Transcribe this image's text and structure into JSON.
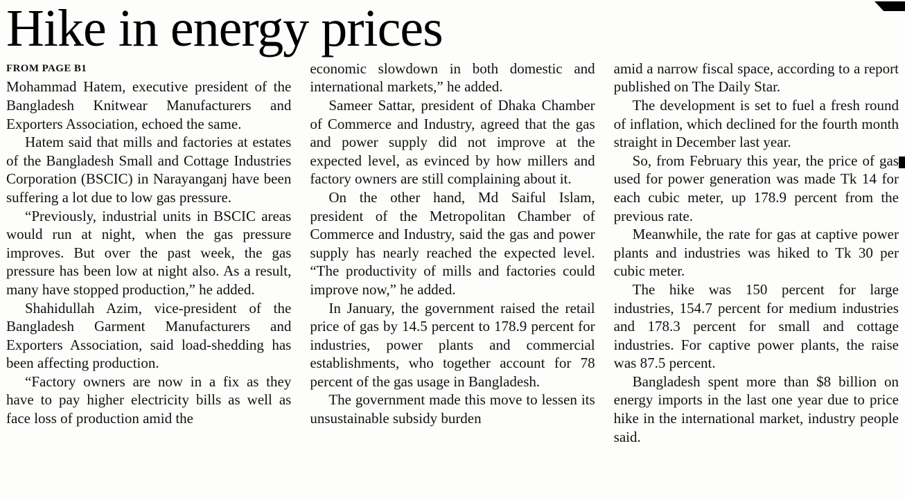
{
  "article": {
    "headline": "Hike in energy prices",
    "kicker": "FROM PAGE B1",
    "text_color": "#111111",
    "background_color": "#fdfdfb",
    "columns": [
      {
        "paragraphs": [
          "Mohammad Hatem, executive president of the Bangladesh Knitwear Manufacturers and Exporters Association, echoed the same.",
          "Hatem said that mills and factories at estates of the Bangladesh Small and Cottage Industries Corporation (BSCIC) in Narayanganj have been suffering a lot due to low gas pressure.",
          "“Previously, industrial units in BSCIC areas would run at night, when the gas pressure improves. But over the past week, the gas pressure has been low at night also. As a result, many have stopped production,” he added.",
          "Shahidullah Azim, vice-president of the Bangladesh Garment Manufacturers and Exporters Association, said load-shedding has been affecting production.",
          "“Factory owners are now in a fix as they have to pay higher electricity bills as well as face loss of production amid the"
        ]
      },
      {
        "paragraphs": [
          "economic slowdown in both domestic and international markets,” he added.",
          "Sameer Sattar, president of Dhaka Chamber of Commerce and Industry, agreed that the gas and power supply did not improve at the expected level, as evinced by how millers and factory owners are still complaining about it.",
          "On the other hand, Md Saiful Islam, president of the Metropolitan Chamber of Commerce and Industry, said the gas and power supply has nearly reached the expected level. “The productivity of mills and factories could improve now,” he added.",
          "In January, the government raised the retail price of gas by 14.5 percent to 178.9 percent for industries, power plants and commercial establishments, who together account for 78 percent of the gas usage in Bangladesh.",
          "The government made this move to lessen its unsustainable subsidy burden"
        ]
      },
      {
        "paragraphs": [
          "amid a narrow fiscal space, according to a report published on The Daily Star.",
          "The development is set to fuel a fresh round of inflation, which declined for the fourth month straight in December last year.",
          "So, from February this year, the price of gas used for power generation was made Tk 14 for each cubic meter, up 178.9 percent from the previous rate.",
          "Meanwhile, the rate for gas at captive power plants and industries was hiked to Tk 30 per cubic meter.",
          "The hike was 150 percent for large industries, 154.7 percent for medium industries and 178.3 percent for small and cottage industries. For captive power plants, the raise was 87.5 percent.",
          "Bangladesh spent more than $8 billion on energy imports in the last one year due to price hike in the international market, industry people said."
        ]
      }
    ]
  }
}
